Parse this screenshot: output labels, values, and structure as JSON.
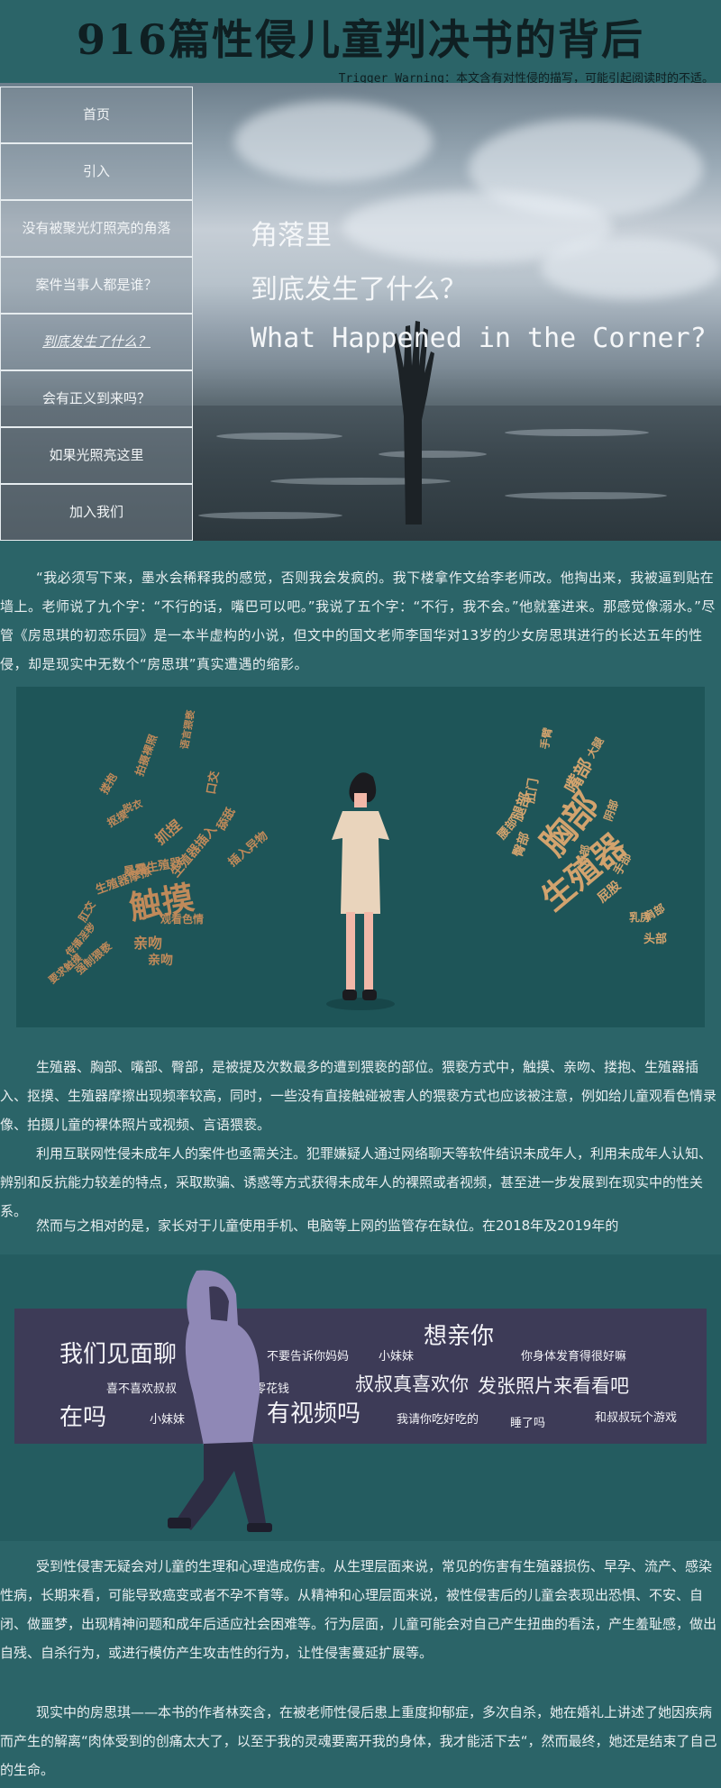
{
  "header": {
    "title": "916篇性侵儿童判决书的背后",
    "trigger": "Trigger Warning：本文含有对性侵的描写，可能引起阅读时的不适。"
  },
  "nav": {
    "items": [
      {
        "label": "首页"
      },
      {
        "label": "引入"
      },
      {
        "label": "没有被聚光灯照亮的角落"
      },
      {
        "label": "案件当事人都是谁？"
      },
      {
        "label": "到底发生了什么？"
      },
      {
        "label": "会有正义到来吗？"
      },
      {
        "label": "如果光照亮这里"
      },
      {
        "label": "加入我们"
      }
    ],
    "active_index": 4
  },
  "hero": {
    "line1": "角落里",
    "line2": "到底发生了什么？",
    "line3": "What Happened in the Corner?"
  },
  "paragraphs": {
    "p1": "“我必须写下来，墨水会稀释我的感觉，否则我会发疯的。我下楼拿作文给李老师改。他掏出来，我被逼到贴在墙上。老师说了九个字：“不行的话，嘴巴可以吧。”我说了五个字：“不行，我不会。”他就塞进来。那感觉像溺水。”尽管《房思琪的初恋乐园》是一本半虚构的小说，但文中的国文老师李国华对13岁的少女房思琪进行的长达五年的性侵，却是现实中无数个“房思琪”真实遭遇的缩影。",
    "p2": "生殖器、胸部、嘴部、臀部，是被提及次数最多的遭到猥亵的部位。猥亵方式中，触摸、亲吻、搂抱、生殖器插入、抠摸、生殖器摩擦出现频率较高，同时，一些没有直接触碰被害人的猥亵方式也应该被注意，例如给儿童观看色情录像、拍摄儿童的裸体照片或视频、言语猥亵。",
    "p3": "利用互联网性侵未成年人的案件也亟需关注。犯罪嫌疑人通过网络聊天等软件结识未成年人，利用未成年人认知、辨别和反抗能力较差的特点，采取欺骗、诱惑等方式获得未成年人的裸照或者视频，甚至进一步发展到在现实中的性关系。",
    "p4": "然而与之相对的是，家长对于儿童使用手机、电脑等上网的监管存在缺位。在2018年及2019年的",
    "p5": "受到性侵害无疑会对儿童的生理和心理造成伤害。从生理层面来说，常见的伤害有生殖器损伤、早孕、流产、感染性病，长期来看，可能导致癌变或者不孕不育等。从精神和心理层面来说，被性侵害后的儿童会表现出恐惧、不安、自闭、做噩梦，出现精神问题和成年后适应社会困难等。行为层面，儿童可能会对自己产生扭曲的看法，产生羞耻感，做出自残、自杀行为，或进行模仿产生攻击性的行为，让性侵害蔓延扩展等。",
    "p6": "现实中的房思琪——本书的作者林奕含，在被老师性侵后患上重度抑郁症，多次自杀，她在婚礼上讲述了她因疾病而产生的解离“肉体受到的创痛太大了，以至于我的灵魂要离开我的身体，我才能活下去“，然而最终，她还是结束了自己的生命。"
  },
  "wordcloud_left": {
    "words": [
      "触摸",
      "亲吻",
      "抓捏",
      "生殖器插入",
      "抠摸",
      "搂抱",
      "拍摄裸照",
      "口交",
      "强制猥亵",
      "脱衣",
      "亲吻",
      "生殖器摩擦",
      "传播淫秽",
      "观看色情",
      "肛交",
      "舔舐",
      "语言猥亵",
      "插入异物",
      "暴露生殖器",
      "要求触摸"
    ],
    "color": "#c08a5a"
  },
  "wordcloud_right": {
    "words": [
      "胸部",
      "生殖器",
      "嘴部",
      "腿部",
      "手臂",
      "肛门",
      "臀部",
      "头部",
      "背部",
      "屁股",
      "阴部",
      "手部",
      "肩部",
      "腰部",
      "乳房",
      "大腿"
    ],
    "color": "#d2a36e"
  },
  "chat_words": [
    {
      "text": "我们见面聊",
      "size": 26
    },
    {
      "text": "想亲你",
      "size": 26
    },
    {
      "text": "不要告诉你妈妈",
      "size": 13
    },
    {
      "text": "小妹妹",
      "size": 13
    },
    {
      "text": "你身体发育得很好嘛",
      "size": 13
    },
    {
      "text": "喜不喜欢叔叔",
      "size": 13
    },
    {
      "text": "给你零花钱",
      "size": 13
    },
    {
      "text": "叔叔真喜欢你",
      "size": 21
    },
    {
      "text": "发张照片来看看吧",
      "size": 21
    },
    {
      "text": "在吗",
      "size": 26
    },
    {
      "text": "小妹妹",
      "size": 13
    },
    {
      "text": "有视频吗",
      "size": 26
    },
    {
      "text": "我请你吃好吃的",
      "size": 13
    },
    {
      "text": "睡了吗",
      "size": 13
    },
    {
      "text": "和叔叔玩个游戏",
      "size": 13
    }
  ],
  "colors": {
    "background": "#2b6468",
    "wordcloud_panel": "#1e5558",
    "chat_panel": "#3d3b57",
    "text": "#e8eef0"
  }
}
